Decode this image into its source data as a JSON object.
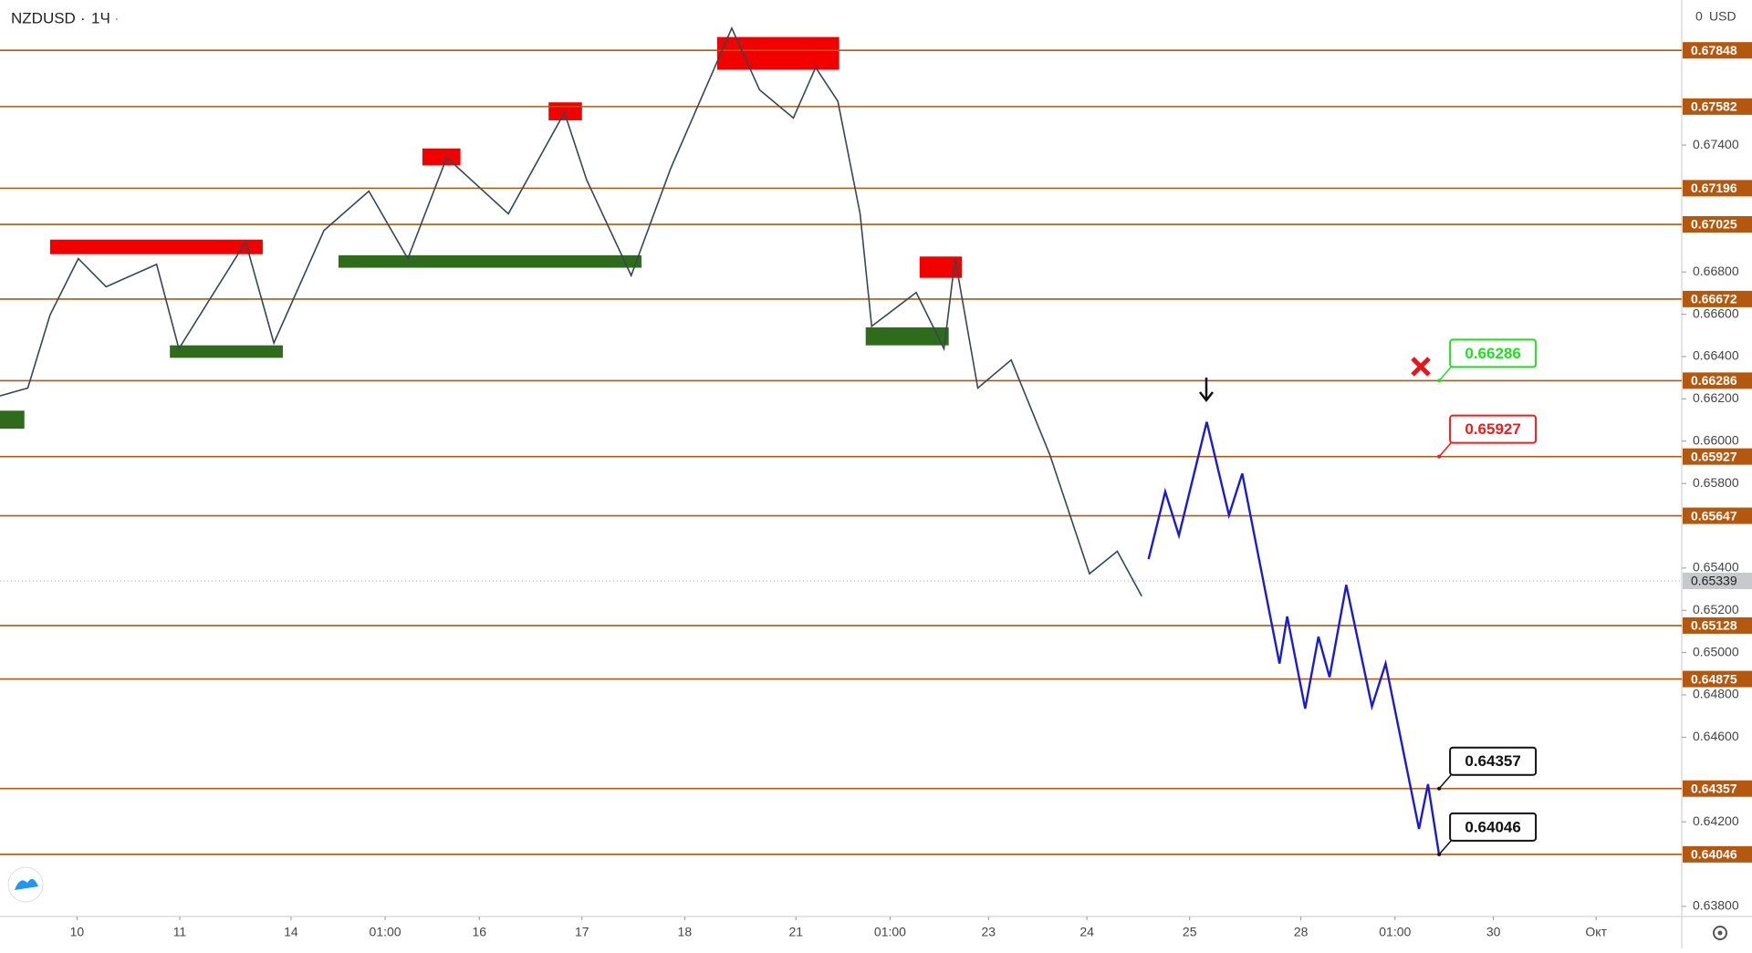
{
  "chart_data": {
    "type": "line",
    "symbol": "NZDUSD",
    "interval": "1Ч",
    "scale_mode": "0",
    "currency": "USD",
    "xlim": [
      0,
      393
    ],
    "ylim": [
      0.63752,
      0.68086
    ],
    "xticks": [
      {
        "value": 18,
        "label": "10"
      },
      {
        "value": 42,
        "label": "11"
      },
      {
        "value": 68,
        "label": "14"
      },
      {
        "value": 90,
        "label": "01:00"
      },
      {
        "value": 112,
        "label": "16"
      },
      {
        "value": 136,
        "label": "17"
      },
      {
        "value": 160,
        "label": "18"
      },
      {
        "value": 186,
        "label": "21"
      },
      {
        "value": 208,
        "label": "01:00"
      },
      {
        "value": 231,
        "label": "23"
      },
      {
        "value": 254,
        "label": "24"
      },
      {
        "value": 278,
        "label": "25"
      },
      {
        "value": 304,
        "label": "28"
      },
      {
        "value": 326,
        "label": "01:00"
      },
      {
        "value": 349,
        "label": "30"
      },
      {
        "value": 373,
        "label": "Окт"
      }
    ],
    "yticks": [
      {
        "value": 0.674,
        "label": "0.67400"
      },
      {
        "value": 0.668,
        "label": "0.66800"
      },
      {
        "value": 0.666,
        "label": "0.66600"
      },
      {
        "value": 0.664,
        "label": "0.66400"
      },
      {
        "value": 0.662,
        "label": "0.66200"
      },
      {
        "value": 0.66,
        "label": "0.66000"
      },
      {
        "value": 0.658,
        "label": "0.65800"
      },
      {
        "value": 0.654,
        "label": "0.65400"
      },
      {
        "value": 0.652,
        "label": "0.65200"
      },
      {
        "value": 0.65,
        "label": "0.65000"
      },
      {
        "value": 0.648,
        "label": "0.64800"
      },
      {
        "value": 0.646,
        "label": "0.64600"
      },
      {
        "value": 0.642,
        "label": "0.64200"
      },
      {
        "value": 0.638,
        "label": "0.63800"
      }
    ],
    "levels": [
      0.67848,
      0.67582,
      0.67196,
      0.67025,
      0.66672,
      0.66286,
      0.65927,
      0.65647,
      0.65128,
      0.64875,
      0.64357,
      0.64046
    ],
    "level_color": "#b4570f",
    "last_price": 0.65339,
    "zones": [
      {
        "x": [
          11.7,
          61.4
        ],
        "y": [
          0.66884,
          0.66953
        ],
        "color": "#f20000"
      },
      {
        "x": [
          98.7,
          107.6
        ],
        "y": [
          0.67304,
          0.67384
        ],
        "color": "#f20000"
      },
      {
        "x": [
          128.2,
          136
        ],
        "y": [
          0.67517,
          0.67602
        ],
        "color": "#f20000"
      },
      {
        "x": [
          167.6,
          196.1
        ],
        "y": [
          0.67756,
          0.67911
        ],
        "color": "#f20000"
      },
      {
        "x": [
          214.9,
          224.8
        ],
        "y": [
          0.66772,
          0.66873
        ],
        "color": "#f20000"
      },
      {
        "x": [
          0,
          5.7
        ],
        "y": [
          0.66059,
          0.66144
        ],
        "color": "#2e6b1a"
      },
      {
        "x": [
          39.7,
          66.1
        ],
        "y": [
          0.66394,
          0.66453
        ],
        "color": "#2e6b1a"
      },
      {
        "x": [
          79.1,
          149.9
        ],
        "y": [
          0.6682,
          0.66879
        ],
        "color": "#2e6b1a"
      },
      {
        "x": [
          202.3,
          221.7
        ],
        "y": [
          0.66453,
          0.66538
        ],
        "color": "#2e6b1a"
      }
    ],
    "series": [
      {
        "color": "#37474f",
        "x": [
          0,
          6.5,
          11.7,
          18.3,
          24.8,
          36.6,
          41.8,
          57.4,
          64,
          75.7,
          86.2,
          95.3,
          104.4,
          118.8,
          131.9,
          137.1,
          147.5,
          156.7,
          171,
          177.5,
          185.4,
          190.6,
          195.8,
          201,
          203.7,
          214.1,
          220.6,
          223.2,
          228.5,
          236.3,
          245.4,
          254.6,
          261.1,
          266.8
        ],
        "values": [
          0.66214,
          0.66251,
          0.66597,
          0.66863,
          0.6673,
          0.66836,
          0.66437,
          0.66942,
          0.66464,
          0.66996,
          0.67182,
          0.66863,
          0.67341,
          0.67075,
          0.67554,
          0.67235,
          0.66783,
          0.67288,
          0.67953,
          0.67661,
          0.67528,
          0.67767,
          0.67607,
          0.67075,
          0.66543,
          0.66703,
          0.66437,
          0.66863,
          0.66251,
          0.66384,
          0.65932,
          0.65373,
          0.65479,
          0.65267
        ]
      },
      {
        "color": "#1a1ad6",
        "x": [
          268.4,
          272.3,
          275.5,
          282,
          287.2,
          290.3,
          299,
          300.8,
          305,
          308.1,
          310.7,
          314.6,
          320.6,
          323.8,
          331.6,
          333.7,
          336.3
        ],
        "values": [
          0.65442,
          0.65761,
          0.65554,
          0.66091,
          0.6565,
          0.65847,
          0.64948,
          0.65171,
          0.64735,
          0.65075,
          0.64884,
          0.6532,
          0.64745,
          0.64948,
          0.64166,
          0.64378,
          0.64043
        ]
      }
    ],
    "targets": [
      {
        "x": 336.3,
        "value": 0.66286,
        "color": "#22dd22"
      },
      {
        "x": 336.3,
        "value": 0.65927,
        "color": "#f21a1a"
      },
      {
        "x": 336.3,
        "value": 0.64357,
        "color": "#111111"
      },
      {
        "x": 336.3,
        "value": 0.64046,
        "color": "#111111"
      }
    ]
  }
}
